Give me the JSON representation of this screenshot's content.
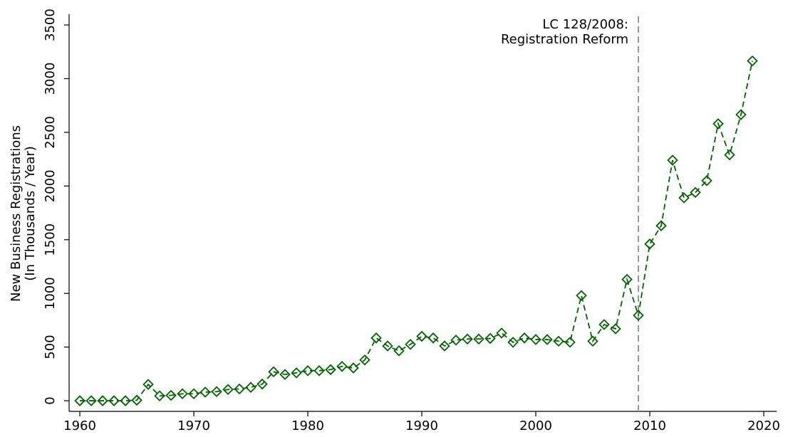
{
  "chart_data": {
    "type": "line",
    "ylabel": [
      "New Business Registrations",
      "(In Thousands / Year)"
    ],
    "annotation": {
      "x": 2009,
      "lines": [
        "LC 128/2008:",
        "Registration Reform"
      ],
      "color": "#999999"
    },
    "x": [
      1960,
      1961,
      1962,
      1963,
      1964,
      1965,
      1966,
      1967,
      1968,
      1969,
      1970,
      1971,
      1972,
      1973,
      1974,
      1975,
      1976,
      1977,
      1978,
      1979,
      1980,
      1981,
      1982,
      1983,
      1984,
      1985,
      1986,
      1987,
      1988,
      1989,
      1990,
      1991,
      1992,
      1993,
      1994,
      1995,
      1996,
      1997,
      1998,
      1999,
      2000,
      2001,
      2002,
      2003,
      2004,
      2005,
      2006,
      2007,
      2008,
      2009,
      2010,
      2011,
      2012,
      2013,
      2014,
      2015,
      2016,
      2017,
      2018,
      2019
    ],
    "values": [
      0,
      0,
      0,
      0,
      0,
      5,
      152,
      45,
      50,
      65,
      65,
      80,
      85,
      105,
      110,
      125,
      155,
      270,
      245,
      260,
      280,
      280,
      290,
      320,
      305,
      380,
      585,
      510,
      465,
      525,
      600,
      585,
      510,
      565,
      575,
      575,
      580,
      630,
      545,
      585,
      570,
      570,
      555,
      545,
      980,
      555,
      710,
      670,
      1130,
      795,
      1460,
      1630,
      2240,
      1890,
      1940,
      2050,
      2580,
      2290,
      2665,
      3165
    ],
    "color": "#006400",
    "xlim": [
      1959.06,
      2021.5
    ],
    "xticks": [
      1960,
      1970,
      1980,
      1990,
      2000,
      2010,
      2020
    ],
    "ylim": [
      -99,
      3600
    ],
    "yticks": [
      0,
      500,
      1000,
      1500,
      2000,
      2500,
      3000,
      3500
    ]
  }
}
